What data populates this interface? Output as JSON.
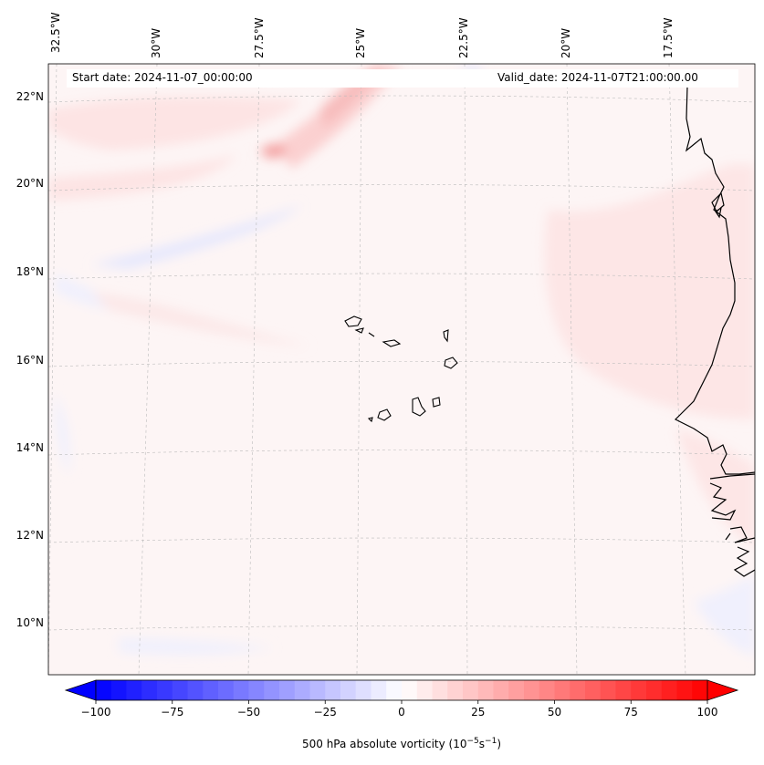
{
  "header": {
    "start_date": "Start date: 2024-11-07_00:00:00",
    "valid_date": "Valid_date: 2024-11-07T21:00:00.00"
  },
  "map": {
    "lon_labels": [
      "32.5°W",
      "30°W",
      "27.5°W",
      "25°W",
      "22.5°W",
      "20°W",
      "17.5°W"
    ],
    "lat_labels": [
      "22°N",
      "20°N",
      "18°N",
      "16°N",
      "14°N",
      "12°N",
      "10°N"
    ],
    "field": "500 hPa absolute vorticity",
    "background_color": "#fdf5f5"
  },
  "colorbar": {
    "ticks": [
      "−100",
      "−75",
      "−50",
      "−25",
      "0",
      "25",
      "50",
      "75",
      "100"
    ],
    "tick_values": [
      -100,
      -75,
      -50,
      -25,
      0,
      25,
      50,
      75,
      100
    ],
    "label_text": "500 hPa absolute vorticity (10",
    "label_exp1": "−5",
    "label_mid": "s",
    "label_exp2": "−1",
    "label_end": ")",
    "min": -100,
    "max": 100,
    "levels": 40,
    "cmap": "bwr",
    "low_color": "#0000ff",
    "mid_color": "#ffffff",
    "high_color": "#ff0000"
  }
}
